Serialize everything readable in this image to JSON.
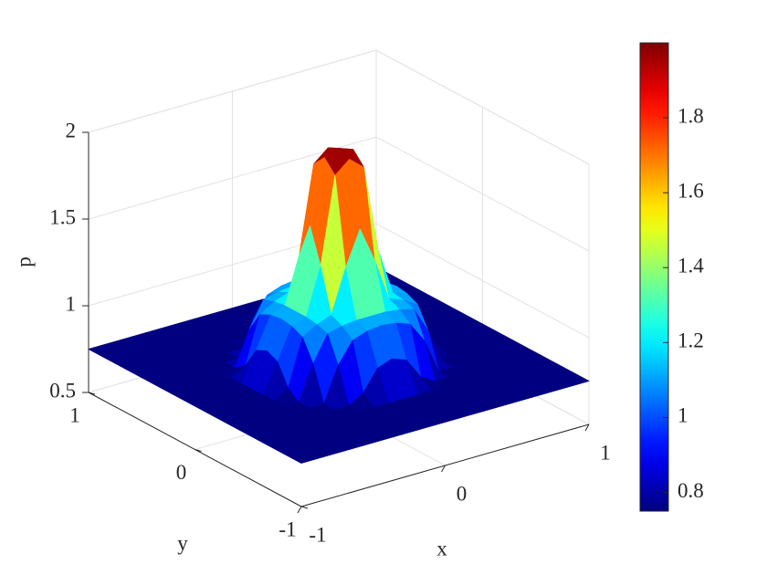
{
  "chart_data": {
    "type": "surface",
    "xlabel": "x",
    "ylabel": "y",
    "zlabel": "p",
    "xlim": [
      -1,
      1
    ],
    "ylim": [
      -1,
      1
    ],
    "zlim": [
      0.5,
      2
    ],
    "xticks": [
      -1,
      0,
      1
    ],
    "yticks": [
      -1,
      0,
      1
    ],
    "zticks": [
      0.5,
      1,
      1.5,
      2
    ],
    "clim": [
      0.75,
      2
    ],
    "cticks": [
      0.8,
      1,
      1.2,
      1.4,
      1.6,
      1.8
    ],
    "colormap": "jet",
    "grid": true,
    "colorbar": true,
    "x": [
      -1,
      -0.9,
      -0.8,
      -0.7,
      -0.6,
      -0.5,
      -0.4,
      -0.3,
      -0.2,
      -0.1,
      0,
      0.1,
      0.2,
      0.3,
      0.4,
      0.5,
      0.6,
      0.7,
      0.8,
      0.9,
      1
    ],
    "y": [
      -1,
      -0.9,
      -0.8,
      -0.7,
      -0.6,
      -0.5,
      -0.4,
      -0.3,
      -0.2,
      -0.1,
      0,
      0.1,
      0.2,
      0.3,
      0.4,
      0.5,
      0.6,
      0.7,
      0.8,
      0.9,
      1
    ],
    "z": [
      [
        0.75,
        0.75,
        0.75,
        0.75,
        0.75,
        0.75,
        0.75,
        0.75,
        0.75,
        0.75,
        0.75,
        0.75,
        0.75,
        0.75,
        0.75,
        0.75,
        0.75,
        0.75,
        0.75,
        0.75,
        0.75
      ],
      [
        0.75,
        0.75,
        0.75,
        0.75,
        0.75,
        0.75,
        0.75,
        0.75,
        0.75,
        0.75,
        0.75,
        0.75,
        0.75,
        0.75,
        0.75,
        0.75,
        0.75,
        0.75,
        0.75,
        0.75,
        0.75
      ],
      [
        0.75,
        0.75,
        0.75,
        0.75,
        0.75,
        0.75,
        0.75,
        0.75,
        0.75,
        0.75,
        0.75,
        0.75,
        0.75,
        0.75,
        0.75,
        0.75,
        0.75,
        0.75,
        0.75,
        0.75,
        0.75
      ],
      [
        0.75,
        0.75,
        0.75,
        0.75,
        0.75,
        0.75,
        0.75,
        0.75,
        0.75,
        0.75,
        0.75,
        0.75,
        0.75,
        0.75,
        0.75,
        0.75,
        0.75,
        0.75,
        0.75,
        0.75,
        0.75
      ],
      [
        0.75,
        0.75,
        0.75,
        0.75,
        0.75,
        0.75,
        0.75,
        0.75,
        0.75,
        0.75,
        0.75,
        0.75,
        0.75,
        0.75,
        0.75,
        0.75,
        0.75,
        0.75,
        0.75,
        0.75,
        0.75
      ],
      [
        0.75,
        0.75,
        0.75,
        0.75,
        0.75,
        0.75,
        0.75,
        0.75,
        0.8,
        0.92,
        0.95,
        0.92,
        0.8,
        0.75,
        0.75,
        0.75,
        0.75,
        0.75,
        0.75,
        0.75,
        0.75
      ],
      [
        0.75,
        0.75,
        0.75,
        0.75,
        0.75,
        0.75,
        0.75,
        0.95,
        1.07,
        1.1,
        1.11,
        1.1,
        1.07,
        0.95,
        0.75,
        0.75,
        0.75,
        0.75,
        0.75,
        0.75,
        0.75
      ],
      [
        0.75,
        0.75,
        0.75,
        0.75,
        0.75,
        0.75,
        0.95,
        1.1,
        1.12,
        1.13,
        1.13,
        1.13,
        1.12,
        1.1,
        0.95,
        0.75,
        0.75,
        0.75,
        0.75,
        0.75,
        0.75
      ],
      [
        0.75,
        0.75,
        0.75,
        0.75,
        0.75,
        0.8,
        1.07,
        1.12,
        1.15,
        1.4,
        1.6,
        1.4,
        1.15,
        1.12,
        1.07,
        0.8,
        0.75,
        0.75,
        0.75,
        0.75,
        0.75
      ],
      [
        0.75,
        0.75,
        0.75,
        0.75,
        0.75,
        0.92,
        1.1,
        1.13,
        1.4,
        1.9,
        1.97,
        1.9,
        1.4,
        1.13,
        1.1,
        0.92,
        0.75,
        0.75,
        0.75,
        0.75,
        0.75
      ],
      [
        0.75,
        0.75,
        0.75,
        0.75,
        0.75,
        0.95,
        1.11,
        1.13,
        1.6,
        1.97,
        2.0,
        1.97,
        1.6,
        1.13,
        1.11,
        0.95,
        0.75,
        0.75,
        0.75,
        0.75,
        0.75
      ],
      [
        0.75,
        0.75,
        0.75,
        0.75,
        0.75,
        0.92,
        1.1,
        1.13,
        1.4,
        1.9,
        1.97,
        1.9,
        1.4,
        1.13,
        1.1,
        0.92,
        0.75,
        0.75,
        0.75,
        0.75,
        0.75
      ],
      [
        0.75,
        0.75,
        0.75,
        0.75,
        0.75,
        0.8,
        1.07,
        1.12,
        1.15,
        1.4,
        1.6,
        1.4,
        1.15,
        1.12,
        1.07,
        0.8,
        0.75,
        0.75,
        0.75,
        0.75,
        0.75
      ],
      [
        0.75,
        0.75,
        0.75,
        0.75,
        0.75,
        0.75,
        0.95,
        1.1,
        1.12,
        1.13,
        1.13,
        1.13,
        1.12,
        1.1,
        0.95,
        0.75,
        0.75,
        0.75,
        0.75,
        0.75,
        0.75
      ],
      [
        0.75,
        0.75,
        0.75,
        0.75,
        0.75,
        0.75,
        0.75,
        0.95,
        1.07,
        1.1,
        1.11,
        1.1,
        1.07,
        0.95,
        0.75,
        0.75,
        0.75,
        0.75,
        0.75,
        0.75,
        0.75
      ],
      [
        0.75,
        0.75,
        0.75,
        0.75,
        0.75,
        0.75,
        0.75,
        0.75,
        0.8,
        0.92,
        0.95,
        0.92,
        0.8,
        0.75,
        0.75,
        0.75,
        0.75,
        0.75,
        0.75,
        0.75,
        0.75
      ],
      [
        0.75,
        0.75,
        0.75,
        0.75,
        0.75,
        0.75,
        0.75,
        0.75,
        0.75,
        0.75,
        0.75,
        0.75,
        0.75,
        0.75,
        0.75,
        0.75,
        0.75,
        0.75,
        0.75,
        0.75,
        0.75
      ],
      [
        0.75,
        0.75,
        0.75,
        0.75,
        0.75,
        0.75,
        0.75,
        0.75,
        0.75,
        0.75,
        0.75,
        0.75,
        0.75,
        0.75,
        0.75,
        0.75,
        0.75,
        0.75,
        0.75,
        0.75,
        0.75
      ],
      [
        0.75,
        0.75,
        0.75,
        0.75,
        0.75,
        0.75,
        0.75,
        0.75,
        0.75,
        0.75,
        0.75,
        0.75,
        0.75,
        0.75,
        0.75,
        0.75,
        0.75,
        0.75,
        0.75,
        0.75,
        0.75
      ],
      [
        0.75,
        0.75,
        0.75,
        0.75,
        0.75,
        0.75,
        0.75,
        0.75,
        0.75,
        0.75,
        0.75,
        0.75,
        0.75,
        0.75,
        0.75,
        0.75,
        0.75,
        0.75,
        0.75,
        0.75,
        0.75
      ],
      [
        0.75,
        0.75,
        0.75,
        0.75,
        0.75,
        0.75,
        0.75,
        0.75,
        0.75,
        0.75,
        0.75,
        0.75,
        0.75,
        0.75,
        0.75,
        0.75,
        0.75,
        0.75,
        0.75,
        0.75,
        0.75
      ]
    ]
  }
}
